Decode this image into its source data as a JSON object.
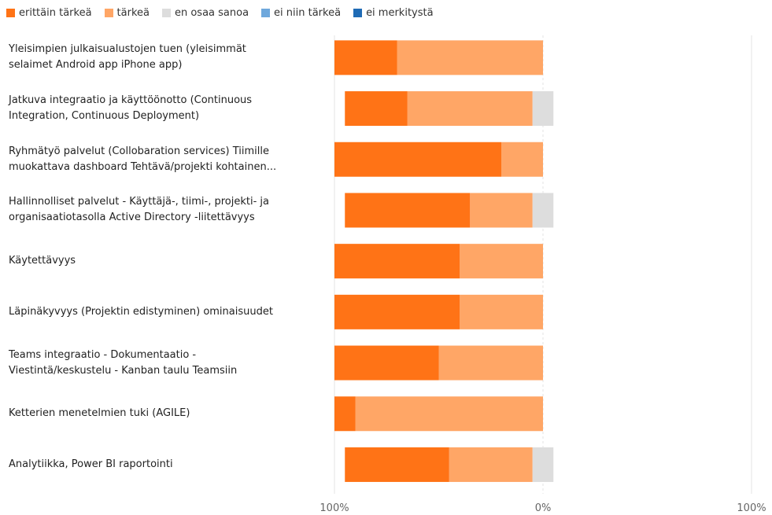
{
  "legend": [
    {
      "label": "erittäin tärkeä",
      "color": "#FF7316"
    },
    {
      "label": "tärkeä",
      "color": "#FFA666"
    },
    {
      "label": "en osaa sanoa",
      "color": "#DDDDDD"
    },
    {
      "label": "ei niin tärkeä",
      "color": "#6FA8DC"
    },
    {
      "label": "ei merkitystä",
      "color": "#1F6BB5"
    }
  ],
  "chart_data": {
    "type": "bar",
    "orientation": "horizontal-diverging",
    "categories": [
      "Yleisimpien julkaisualustojen tuen (yleisimmät\nselaimet Android app iPhone app)",
      "Jatkuva integraatio ja käyttöönotto (Continuous\nIntegration, Continuous Deployment)",
      "Ryhmätyö palvelut (Collobaration services) Tiimille\nmuokattava dashboard Tehtävä/projekti kohtainen...",
      "Hallinnolliset palvelut - Käyttäjä-, tiimi-, projekti- ja\norganisaatiotasolla Active Directory -liitettävyys",
      "Käytettävyys",
      "Läpinäkyvyys (Projektin edistyminen) ominaisuudet",
      "Teams integraatio - Dokumentaatio -\nViestintä/keskustelu - Kanban taulu Teamsiin",
      "Ketterien menetelmien tuki (AGILE)",
      "Analytiikka, Power BI raportointi"
    ],
    "series": [
      {
        "name": "erittäin tärkeä",
        "color": "#FF7316",
        "values": [
          30,
          30,
          80,
          60,
          60,
          60,
          50,
          10,
          50
        ]
      },
      {
        "name": "tärkeä",
        "color": "#FFA666",
        "values": [
          70,
          60,
          20,
          30,
          40,
          40,
          50,
          90,
          40
        ]
      },
      {
        "name": "en osaa sanoa",
        "color": "#DDDDDD",
        "values": [
          0,
          10,
          0,
          10,
          0,
          0,
          0,
          0,
          10
        ]
      },
      {
        "name": "ei niin tärkeä",
        "color": "#6FA8DC",
        "values": [
          0,
          0,
          0,
          0,
          0,
          0,
          0,
          0,
          0
        ]
      },
      {
        "name": "ei merkitystä",
        "color": "#1F6BB5",
        "values": [
          0,
          0,
          0,
          0,
          0,
          0,
          0,
          0,
          0
        ]
      }
    ],
    "xlim": [
      -100,
      100
    ],
    "xticks": [
      "100%",
      "0%",
      "100%"
    ],
    "grid": true,
    "legend_position": "top-left"
  }
}
